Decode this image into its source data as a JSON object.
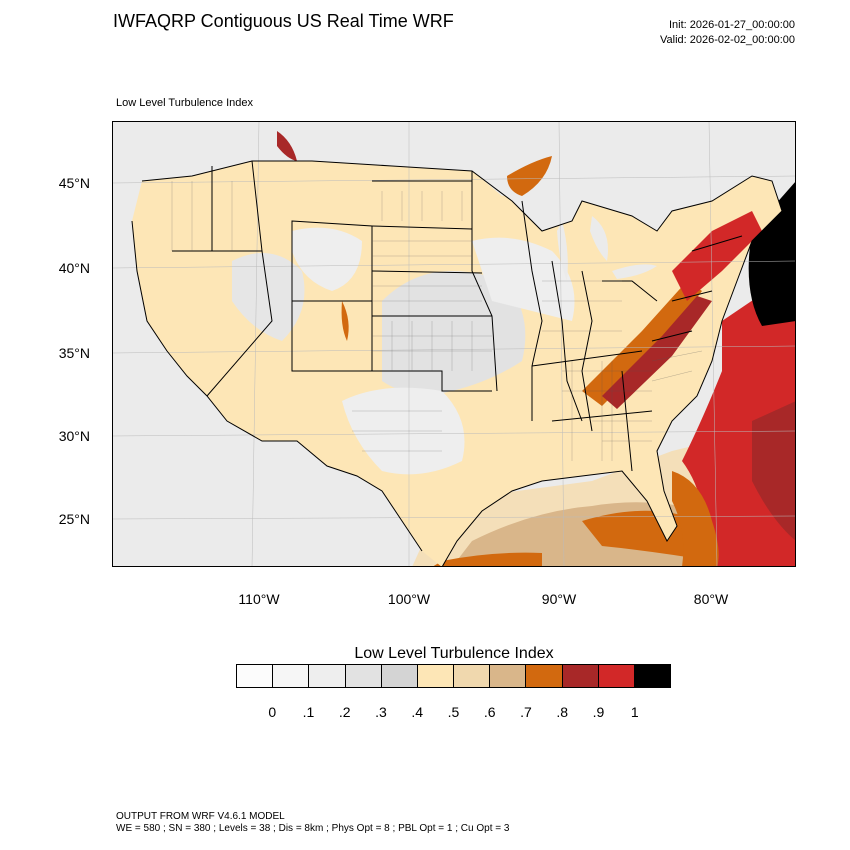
{
  "header": {
    "title": "IWFAQRP Contiguous US Real Time WRF",
    "init": "Init: 2026-01-27_00:00:00",
    "valid": "Valid: 2026-02-02_00:00:00"
  },
  "subtitle": "Low Level Turbulence Index",
  "latitude_labels": [
    "45°N",
    "40°N",
    "35°N",
    "30°N",
    "25°N"
  ],
  "longitude_labels": [
    "110°W",
    "100°W",
    "90°W",
    "80°W"
  ],
  "colorbar": {
    "title": "Low Level Turbulence Index",
    "labels": [
      "0",
      ".1",
      ".2",
      ".3",
      ".4",
      ".5",
      ".6",
      ".7",
      ".8",
      ".9",
      "1"
    ],
    "colors": [
      "#fcfcfc",
      "#f6f6f6",
      "#eeeeee",
      "#e2e2e2",
      "#d4d4d4",
      "#fde6b6",
      "#f0d8ae",
      "#d9b68a",
      "#d2690f",
      "#a82828",
      "#d22828",
      "#000000"
    ]
  },
  "footer": {
    "line1": "OUTPUT FROM WRF V4.6.1 MODEL",
    "line2": "WE = 580 ; SN = 380 ; Levels = 38 ; Dis = 8km ; Phys Opt = 8 ; PBL Opt = 1 ; Cu Opt = 3"
  }
}
